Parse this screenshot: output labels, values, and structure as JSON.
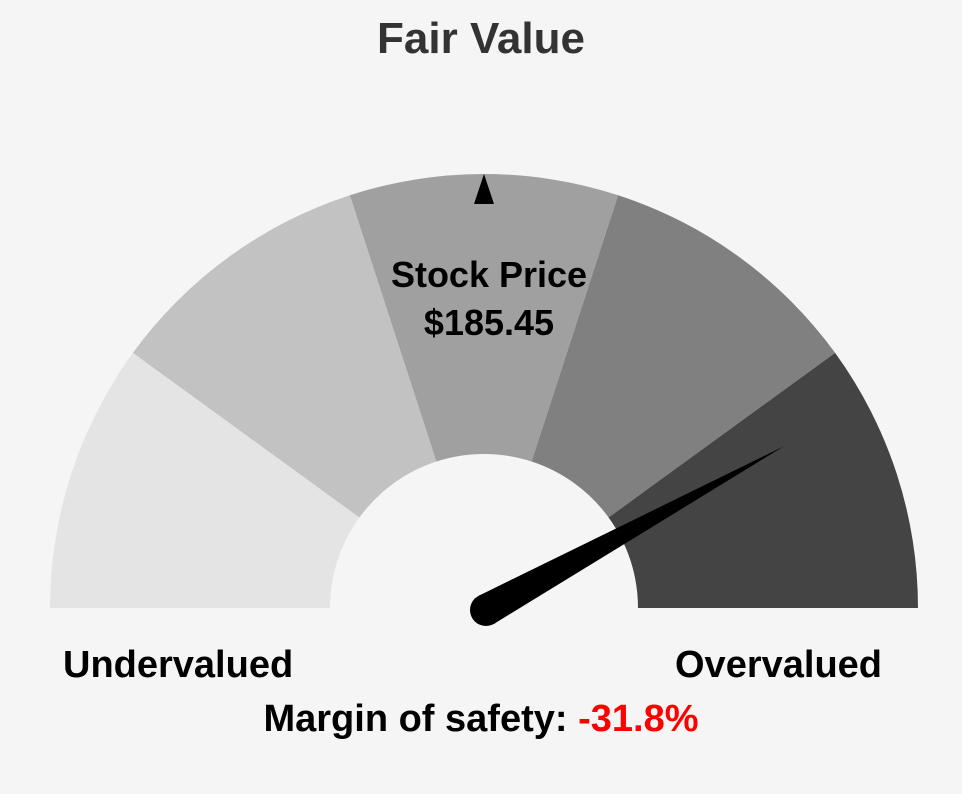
{
  "chart_data": {
    "type": "gauge",
    "title": "Fair Value",
    "band_colors": [
      "#e4e4e4",
      "#c2c2c2",
      "#a0a0a0",
      "#808080",
      "#444444"
    ],
    "needle_value": 0.84,
    "fair_value_marker": 0.5,
    "needle_color": "#000000"
  },
  "center": {
    "label": "Stock Price",
    "value": "$185.45"
  },
  "labels": {
    "left": "Undervalued",
    "right": "Overvalued"
  },
  "margin": {
    "label": "Margin of safety:",
    "value": "-31.8%",
    "value_color": "#ff0000"
  }
}
